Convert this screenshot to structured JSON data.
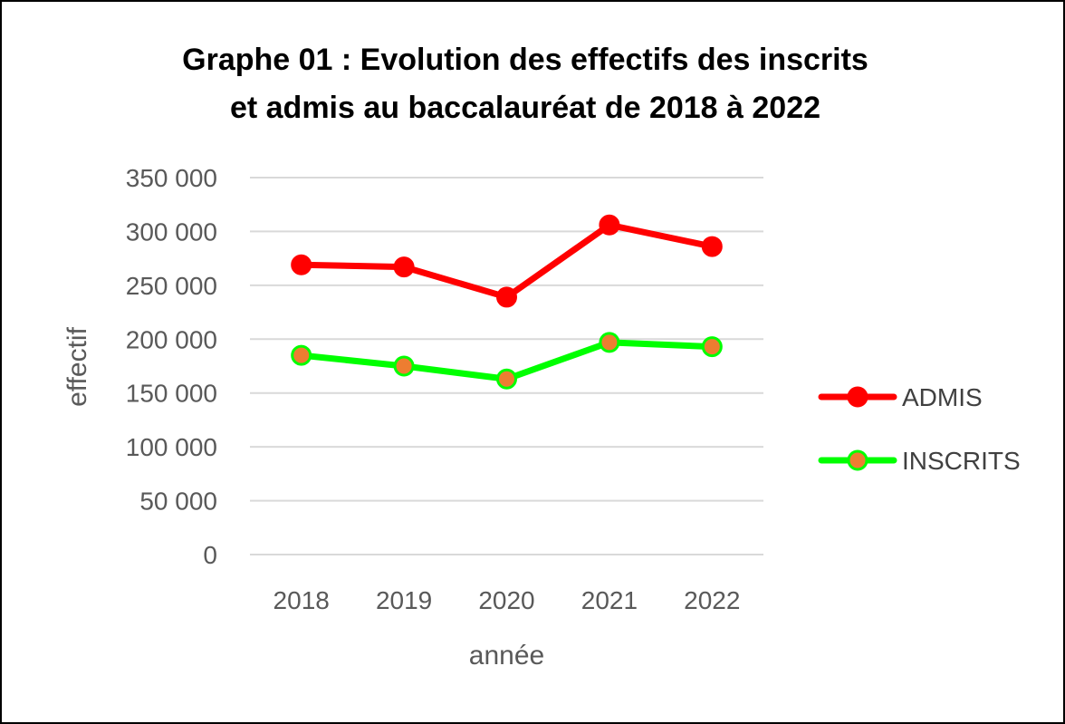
{
  "chart_data": {
    "type": "line",
    "title_line1": "Graphe 01 : Evolution des effectifs des inscrits",
    "title_line2": "et admis au baccalauréat de 2018 à 2022",
    "xlabel": "année",
    "ylabel": "effectif",
    "categories": [
      "2018",
      "2019",
      "2020",
      "2021",
      "2022"
    ],
    "ylim": [
      0,
      350000
    ],
    "yticks": [
      0,
      50000,
      100000,
      150000,
      200000,
      250000,
      300000,
      350000
    ],
    "ytick_labels": [
      "0",
      "50 000",
      "100 000",
      "150 000",
      "200 000",
      "250 000",
      "300 000",
      "350 000"
    ],
    "grid": true,
    "legend_position": "right",
    "series": [
      {
        "name": "ADMIS",
        "values": [
          269000,
          267000,
          239000,
          306000,
          286000
        ],
        "color": "#ff0000",
        "marker_color": "#ff0000"
      },
      {
        "name": "INSCRITS",
        "values": [
          185000,
          175000,
          163000,
          197000,
          193000
        ],
        "color": "#00ff00",
        "marker_color": "#ed7d31"
      }
    ]
  }
}
